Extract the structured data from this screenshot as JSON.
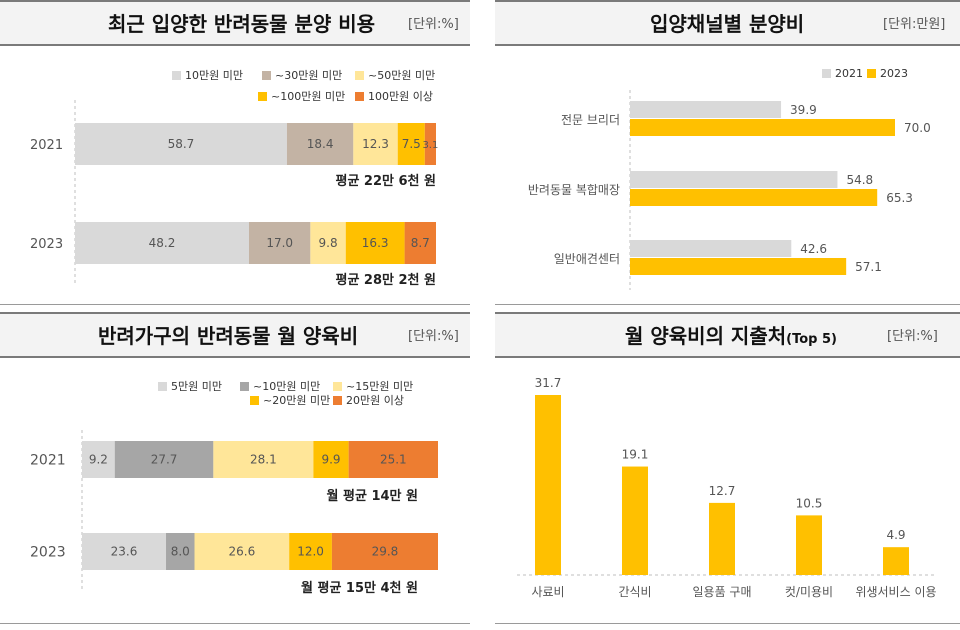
{
  "panels": {
    "adoption_cost": {
      "title": "최근 입양한 반려동물 분양 비용",
      "unit": "[단위:%]"
    },
    "channel_cost": {
      "title": "입양채널별 분양비",
      "unit": "[단위:만원]"
    },
    "monthly_cost": {
      "title": "반려가구의 반려동물 월 양육비",
      "unit": "[단위:%]"
    },
    "spending_top5": {
      "title": "월 양육비의 지출처",
      "title_suffix": "(Top 5)",
      "unit": "[단위:%]"
    }
  },
  "chart_data": [
    {
      "id": "adoption_cost",
      "type": "bar",
      "orientation": "horizontal-stacked",
      "title": "최근 입양한 반려동물 분양 비용",
      "categories": [
        "2021",
        "2023"
      ],
      "series": [
        {
          "name": "10만원 미만",
          "values": [
            58.7,
            48.2
          ],
          "color": "#d9d9d9"
        },
        {
          "name": "~30만원 미만",
          "values": [
            18.4,
            17.0
          ],
          "color": "#c3b3a4"
        },
        {
          "name": "~50만원 미만",
          "values": [
            12.3,
            9.8
          ],
          "color": "#ffe699"
        },
        {
          "name": "~100만원 미만",
          "values": [
            7.5,
            16.3
          ],
          "color": "#ffc000"
        },
        {
          "name": "100만원 이상",
          "values": [
            3.1,
            8.7
          ],
          "color": "#ed7d31"
        }
      ],
      "labels": [
        [
          "58.7",
          "18.4",
          "12.3",
          "7.5",
          "3.1"
        ],
        [
          "48.2",
          "17.0",
          "9.8",
          "16.3",
          "8.7"
        ]
      ],
      "annotations": [
        "평균 22만 6천 원",
        "평균 28만 2천 원"
      ]
    },
    {
      "id": "channel_cost",
      "type": "bar",
      "orientation": "horizontal-grouped",
      "title": "입양채널별 분양비",
      "categories": [
        "전문 브리더",
        "반려동물 복합매장",
        "일반애견센터"
      ],
      "series": [
        {
          "name": "2021",
          "values": [
            39.9,
            54.8,
            42.6
          ],
          "color": "#d9d9d9"
        },
        {
          "name": "2023",
          "values": [
            70.0,
            65.3,
            57.1
          ],
          "color": "#ffc000"
        }
      ],
      "labels": [
        [
          "39.9",
          "54.8",
          "42.6"
        ],
        [
          "70.0",
          "65.3",
          "57.1"
        ]
      ],
      "xlim": [
        0,
        70
      ]
    },
    {
      "id": "monthly_cost",
      "type": "bar",
      "orientation": "horizontal-stacked",
      "title": "반려가구의 반려동물 월 양육비",
      "categories": [
        "2021",
        "2023"
      ],
      "series": [
        {
          "name": "5만원 미만",
          "values": [
            9.2,
            23.6
          ],
          "color": "#d9d9d9"
        },
        {
          "name": "~10만원 미만",
          "values": [
            27.7,
            8.0
          ],
          "color": "#a6a6a6"
        },
        {
          "name": "~15만원 미만",
          "values": [
            28.1,
            26.6
          ],
          "color": "#ffe699"
        },
        {
          "name": "~20만원 미만",
          "values": [
            9.9,
            12.0
          ],
          "color": "#ffc000"
        },
        {
          "name": "20만원 이상",
          "values": [
            25.1,
            29.8
          ],
          "color": "#ed7d31"
        }
      ],
      "labels": [
        [
          "9.2",
          "27.7",
          "28.1",
          "9.9",
          "25.1"
        ],
        [
          "23.6",
          "8.0",
          "26.6",
          "12.0",
          "29.8"
        ]
      ],
      "annotations": [
        "월 평균 14만 원",
        "월 평균 15만 4천 원"
      ]
    },
    {
      "id": "spending_top5",
      "type": "bar",
      "orientation": "vertical",
      "title": "월 양육비의 지출처 (Top 5)",
      "categories": [
        "사료비",
        "간식비",
        "일용품 구매",
        "컷/미용비",
        "위생서비스 이용"
      ],
      "values": [
        31.7,
        19.1,
        12.7,
        10.5,
        4.9
      ],
      "labels": [
        "31.7",
        "19.1",
        "12.7",
        "10.5",
        "4.9"
      ],
      "color": "#ffc000",
      "ylim": [
        0,
        31.7
      ]
    }
  ]
}
